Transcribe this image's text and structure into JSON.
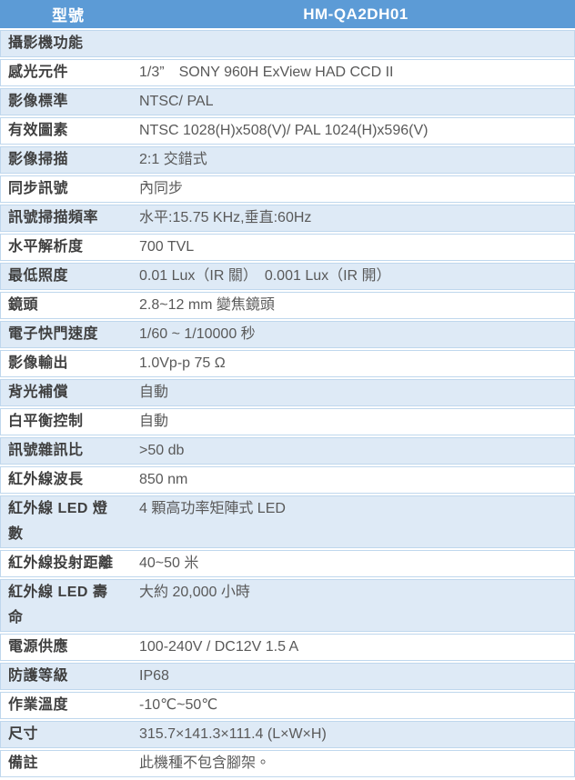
{
  "colors": {
    "header_bg": "#5C9BD6",
    "header_text": "#FFFFFF",
    "alt_bg": "#DEEAF6",
    "border_color": "#BFD7ED",
    "label_text": "#3F3F3F",
    "value_text": "#595959"
  },
  "table": {
    "header": {
      "label": "型號",
      "value": "HM-QA2DH01"
    },
    "section": "攝影機功能",
    "rows": [
      {
        "label": "感光元件",
        "value": "1/3”　SONY 960H ExView HAD CCD II"
      },
      {
        "label": "影像標準",
        "value": "NTSC/ PAL"
      },
      {
        "label": "有效圖素",
        "value": "NTSC 1028(H)x508(V)/ PAL 1024(H)x596(V)"
      },
      {
        "label": "影像掃描",
        "value": "2:1 交錯式"
      },
      {
        "label": "同步訊號",
        "value": "內同步"
      },
      {
        "label": "訊號掃描頻率",
        "value": "水平:15.75 KHz,垂直:60Hz"
      },
      {
        "label": "水平解析度",
        "value": "700 TVL"
      },
      {
        "label": "最低照度",
        "value": "0.01 Lux（IR 關）　0.001 Lux（IR 開）"
      },
      {
        "label": "鏡頭",
        "value": "2.8~12 mm 變焦鏡頭"
      },
      {
        "label": "電子快門速度",
        "value": "1/60 ~ 1/10000 秒"
      },
      {
        "label": "影像輸出",
        "value": "1.0Vp-p 75 Ω"
      },
      {
        "label": "背光補償",
        "value": "自動"
      },
      {
        "label": "白平衡控制",
        "value": "自動"
      },
      {
        "label": "訊號雜訊比",
        "value": ">50 db"
      },
      {
        "label": "紅外線波長",
        "value": "850 nm"
      },
      {
        "label": "紅外線 LED 燈\n數",
        "value": "4 顆高功率矩陣式 LED"
      },
      {
        "label": "紅外線投射距離",
        "value": "40~50 米"
      },
      {
        "label": "紅外線 LED 壽\n命",
        "value": "大約 20,000 小時"
      },
      {
        "label": "電源供應",
        "value": "100-240V / DC12V 1.5 A"
      },
      {
        "label": "防護等級",
        "value": "IP68"
      },
      {
        "label": "作業溫度",
        "value": "-10℃~50℃"
      },
      {
        "label": "尺寸",
        "value": "315.7×141.3×111.4 (L×W×H)"
      },
      {
        "label": "備註",
        "value": "此機種不包含腳架。"
      }
    ]
  }
}
